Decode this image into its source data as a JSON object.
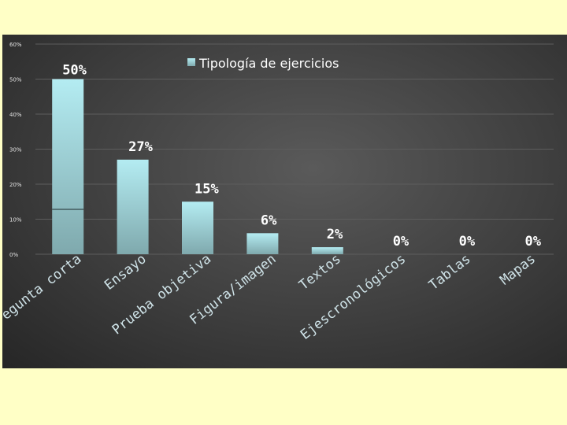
{
  "chart_data": {
    "type": "bar",
    "title": "",
    "xlabel": "",
    "ylabel": "",
    "ylim": [
      0,
      60
    ],
    "y_ticks": [
      "0%",
      "10%",
      "20%",
      "30%",
      "40%",
      "50%",
      "60%"
    ],
    "categories": [
      "Pregunta corta",
      "Ensayo",
      "Prueba objetiva",
      "Figura/imagen",
      "Textos",
      "Ejescronológicos",
      "Tablas",
      "Mapas"
    ],
    "series": [
      {
        "name": "Tipología de ejercicios",
        "values": [
          50,
          27,
          15,
          6,
          2,
          0,
          0,
          0
        ],
        "labels": [
          "50%",
          "27%",
          "15%",
          "6%",
          "2%",
          "0%",
          "0%",
          "0%"
        ]
      }
    ],
    "legend_position": "top",
    "grid": true,
    "colors": {
      "bar_top": "#b4ecf2",
      "bar_bottom": "#7fa9ad",
      "panel": "#3f3f3f",
      "page": "#ffffc6"
    }
  }
}
